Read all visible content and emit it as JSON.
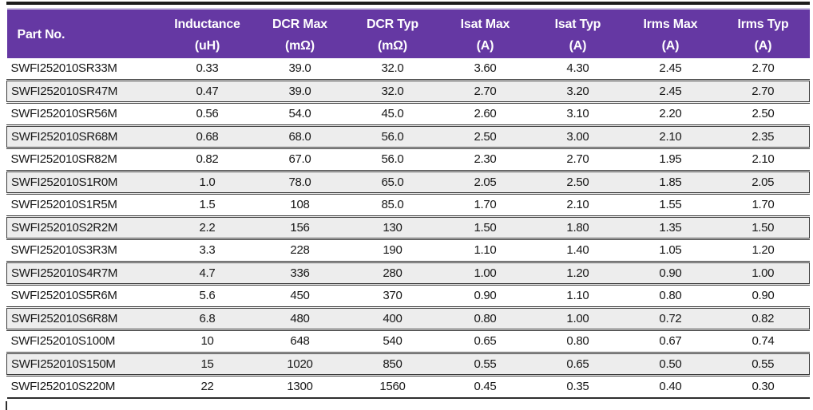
{
  "colors": {
    "header_bg": "#6538A3",
    "header_text": "#ffffff",
    "stripe_bg": "#EDEDED",
    "row_border": "#3c3c3c",
    "top_bar": "#1c1c1c"
  },
  "table": {
    "columns": [
      {
        "label": "Part No.",
        "unit": ""
      },
      {
        "label": "Inductance",
        "unit": "(uH)"
      },
      {
        "label": "DCR Max",
        "unit": "(mΩ)"
      },
      {
        "label": "DCR Typ",
        "unit": "(mΩ)"
      },
      {
        "label": "Isat Max",
        "unit": "(A)"
      },
      {
        "label": "Isat Typ",
        "unit": "(A)"
      },
      {
        "label": "Irms Max",
        "unit": "(A)"
      },
      {
        "label": "Irms Typ",
        "unit": "(A)"
      }
    ],
    "rows": [
      [
        "SWFI252010SR33M",
        "0.33",
        "39.0",
        "32.0",
        "3.60",
        "4.30",
        "2.45",
        "2.70"
      ],
      [
        "SWFI252010SR47M",
        "0.47",
        "39.0",
        "32.0",
        "2.70",
        "3.20",
        "2.45",
        "2.70"
      ],
      [
        "SWFI252010SR56M",
        "0.56",
        "54.0",
        "45.0",
        "2.60",
        "3.10",
        "2.20",
        "2.50"
      ],
      [
        "SWFI252010SR68M",
        "0.68",
        "68.0",
        "56.0",
        "2.50",
        "3.00",
        "2.10",
        "2.35"
      ],
      [
        "SWFI252010SR82M",
        "0.82",
        "67.0",
        "56.0",
        "2.30",
        "2.70",
        "1.95",
        "2.10"
      ],
      [
        "SWFI252010S1R0M",
        "1.0",
        "78.0",
        "65.0",
        "2.05",
        "2.50",
        "1.85",
        "2.05"
      ],
      [
        "SWFI252010S1R5M",
        "1.5",
        "108",
        "85.0",
        "1.70",
        "2.10",
        "1.55",
        "1.70"
      ],
      [
        "SWFI252010S2R2M",
        "2.2",
        "156",
        "130",
        "1.50",
        "1.80",
        "1.35",
        "1.50"
      ],
      [
        "SWFI252010S3R3M",
        "3.3",
        "228",
        "190",
        "1.10",
        "1.40",
        "1.05",
        "1.20"
      ],
      [
        "SWFI252010S4R7M",
        "4.7",
        "336",
        "280",
        "1.00",
        "1.20",
        "0.90",
        "1.00"
      ],
      [
        "SWFI252010S5R6M",
        "5.6",
        "450",
        "370",
        "0.90",
        "1.10",
        "0.80",
        "0.90"
      ],
      [
        "SWFI252010S6R8M",
        "6.8",
        "480",
        "400",
        "0.80",
        "1.00",
        "0.72",
        "0.82"
      ],
      [
        "SWFI252010S100M",
        "10",
        "648",
        "540",
        "0.65",
        "0.80",
        "0.67",
        "0.74"
      ],
      [
        "SWFI252010S150M",
        "15",
        "1020",
        "850",
        "0.55",
        "0.65",
        "0.50",
        "0.55"
      ],
      [
        "SWFI252010S220M",
        "22",
        "1300",
        "1560",
        "0.45",
        "0.35",
        "0.40",
        "0.30"
      ]
    ]
  }
}
